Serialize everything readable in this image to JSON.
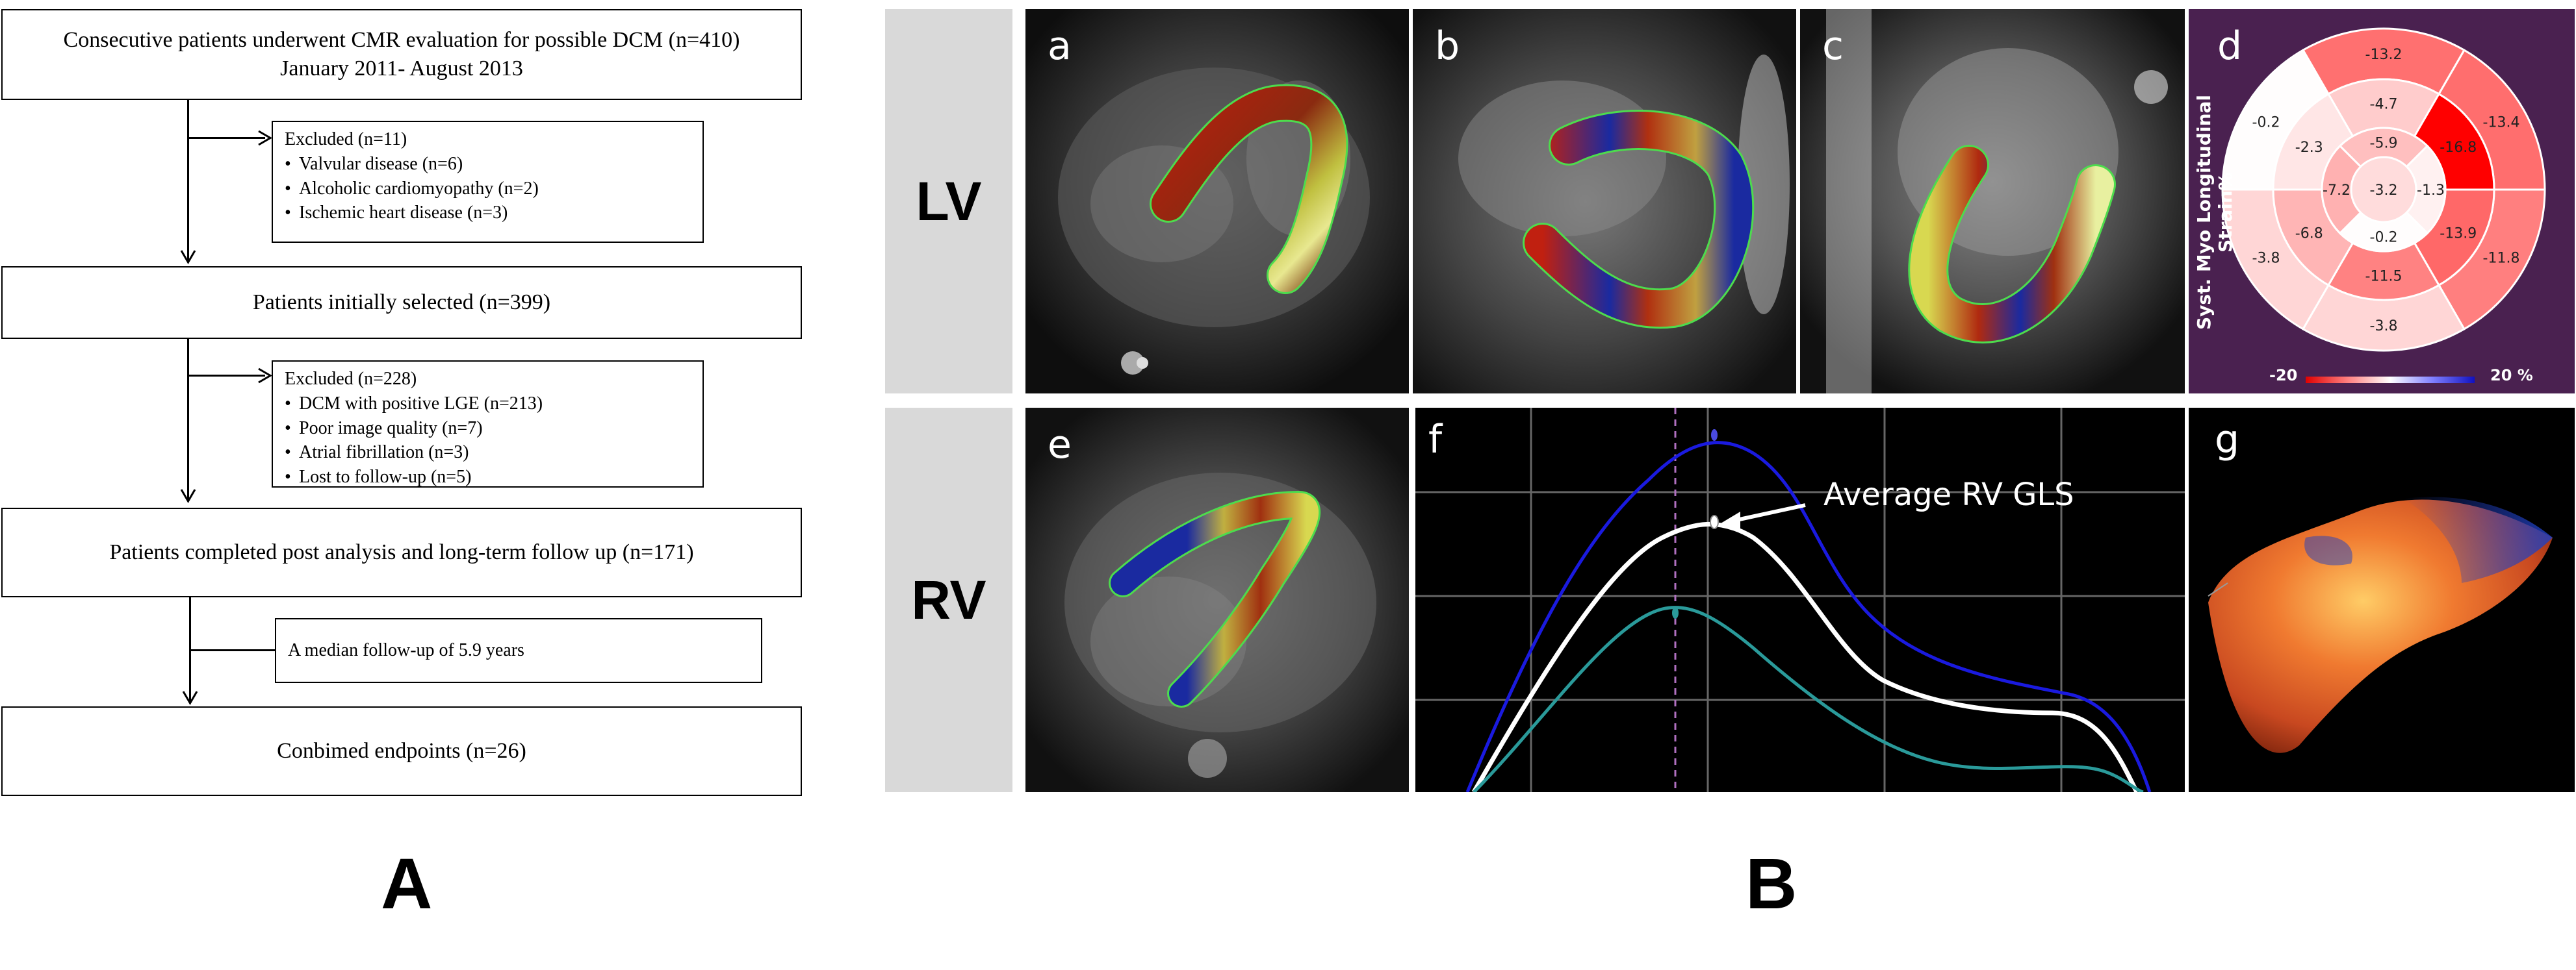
{
  "flowchart": {
    "start": {
      "line1": "Consecutive patients underwent CMR evaluation for possible DCM (n=410)",
      "line2": "January 2011- August 2013"
    },
    "excluded1": {
      "title": "Excluded (n=11)",
      "items": [
        "Valvular disease (n=6)",
        "Alcoholic cardiomyopathy (n=2)",
        "Ischemic heart disease (n=3)"
      ]
    },
    "selected": "Patients initially selected (n=399)",
    "excluded2": {
      "title": "Excluded (n=228)",
      "items": [
        "DCM with positive LGE (n=213)",
        "Poor image quality (n=7)",
        "Atrial fibrillation (n=3)",
        "Lost to follow-up (n=5)"
      ]
    },
    "completed": "Patients completed post analysis and long-term follow up (n=171)",
    "followup": "A median follow-up of 5.9 years",
    "endpoints": "Conbimed endpoints (n=26)"
  },
  "labels": {
    "A": "A",
    "B": "B",
    "LV": "LV",
    "RV": "RV"
  },
  "panels": {
    "a": "a",
    "b": "b",
    "c": "c",
    "d": "d",
    "e": "e",
    "f": "f",
    "g": "g"
  },
  "bullseye": {
    "title": "Syst. Myo Longitudinal Strain%",
    "scale_min": "-20",
    "scale_max": "20 %",
    "segments": {
      "basal": [
        "-13.2",
        "-13.4",
        "-11.8",
        "-3.8",
        "-3.8",
        "-0.2"
      ],
      "mid": [
        "-4.7",
        "-16.8",
        "-13.9",
        "-11.5",
        "-6.8",
        "-2.3"
      ],
      "apical": [
        "-5.9",
        "-1.3",
        "-0.2",
        "-7.2"
      ],
      "apex": "-3.2"
    }
  },
  "strain_curve": {
    "annotation": "Average RV GLS"
  },
  "colors": {
    "bullseye_bg": "#4a2150",
    "strain_dark": "#e00000",
    "strain_light": "#ffe0e0",
    "curve_blue": "#1a1adf",
    "curve_white": "#ffffff",
    "curve_teal": "#2a9a9a"
  }
}
